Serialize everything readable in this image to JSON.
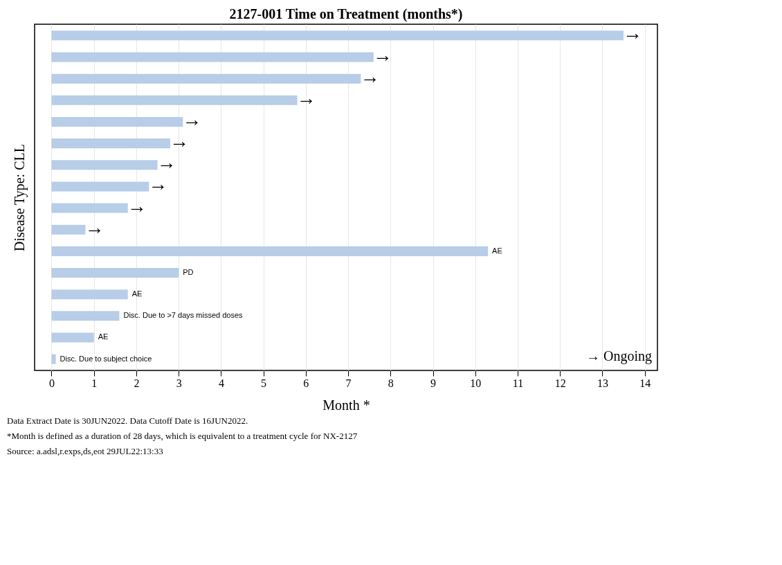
{
  "chart_data": {
    "type": "bar",
    "orientation": "horizontal",
    "title": "2127-001 Time on Treatment (months*)",
    "xlabel": "Month *",
    "ylabel": "Disease Type: CLL",
    "categories": [
      null,
      null,
      null,
      null,
      null,
      null,
      null,
      null,
      null,
      null,
      null,
      null,
      null,
      null,
      null,
      null
    ],
    "values": [
      13.5,
      7.6,
      7.3,
      5.8,
      3.1,
      2.8,
      2.5,
      2.3,
      1.8,
      0.8,
      10.3,
      3.0,
      1.8,
      1.6,
      1.0,
      0.1
    ],
    "value_labels": [
      "→",
      "→",
      "→",
      "→",
      "→",
      "→",
      "→",
      "→",
      "→",
      "→",
      "AE",
      "PD",
      "AE",
      "Disc. Due to >7 days missed doses",
      "AE",
      "Disc. Due to subject choice"
    ],
    "color": "#b7cde8",
    "xlim": [
      -0.4,
      14.3
    ],
    "xticks": [
      0,
      1,
      2,
      3,
      4,
      5,
      6,
      7,
      8,
      9,
      10,
      11,
      12,
      13,
      14
    ],
    "grid": "x",
    "annotations": [
      "→ Ongoing",
      "Data Extract Date is 30JUN2022. Data Cutoff Date is 16JUN2022.",
      "*Month is defined as a duration of 28 days, which is equivalent to a treatment cycle for NX-2127",
      "Source: a.adsl,r.exps,ds,eot    29JUL22:13:33"
    ]
  }
}
